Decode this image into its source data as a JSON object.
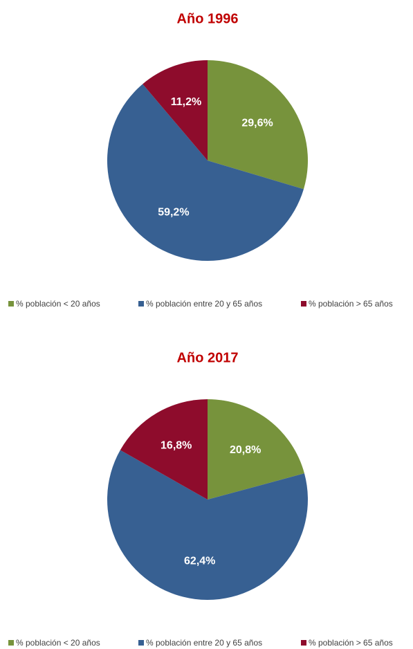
{
  "chart_data": [
    {
      "type": "pie",
      "title": "Año 1996",
      "categories": [
        "% población < 20 años",
        "% población entre 20 y 65 años",
        "% población > 65 años"
      ],
      "values": [
        29.6,
        59.2,
        11.2
      ],
      "value_labels": [
        "29,6%",
        "59,2%",
        "11,2%"
      ],
      "colors": [
        "#77933c",
        "#376092",
        "#8e0c2c"
      ],
      "legend": "bottom"
    },
    {
      "type": "pie",
      "title": "Año 2017",
      "categories": [
        "% población < 20 años",
        "% población entre 20 y 65 años",
        "% población > 65 años"
      ],
      "values": [
        20.8,
        62.4,
        16.8
      ],
      "value_labels": [
        "20,8%",
        "62,4%",
        "16,8%"
      ],
      "colors": [
        "#77933c",
        "#376092",
        "#8e0c2c"
      ],
      "legend": "bottom"
    }
  ]
}
